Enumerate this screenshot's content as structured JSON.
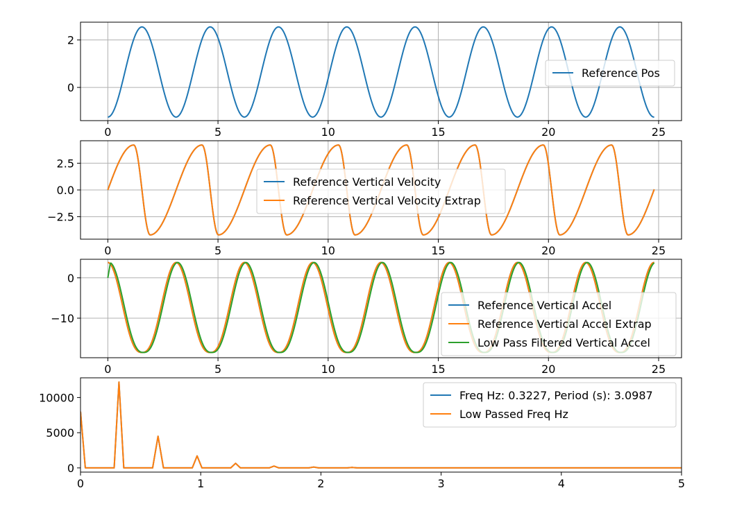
{
  "figure": {
    "background": "#ffffff"
  },
  "chart_data": [
    {
      "type": "line",
      "title": "",
      "xlabel": "",
      "ylabel": "",
      "grid": true,
      "xlim": [
        -1.24,
        26.04
      ],
      "ylim": [
        -1.4,
        2.75
      ],
      "xticks": [
        0,
        5,
        10,
        15,
        20,
        25
      ],
      "xtick_labels": [
        "0",
        "5",
        "10",
        "15",
        "20",
        "25"
      ],
      "yticks": [
        0,
        2
      ],
      "ytick_labels": [
        "0",
        "2"
      ],
      "legend": "right",
      "series": [
        {
          "name": "Reference Pos",
          "color": "#1f77b4",
          "kind": "pos",
          "amplitude": 1.9,
          "offset": 0.65,
          "phase": -1.5708,
          "period_s": 3.0987,
          "x_range": [
            0,
            24.8
          ]
        }
      ]
    },
    {
      "type": "line",
      "title": "",
      "xlabel": "",
      "ylabel": "",
      "grid": true,
      "xlim": [
        -1.24,
        26.04
      ],
      "ylim": [
        -4.6,
        4.6
      ],
      "xticks": [
        0,
        5,
        10,
        15,
        20,
        25
      ],
      "xtick_labels": [
        "0",
        "5",
        "10",
        "15",
        "20",
        "25"
      ],
      "yticks": [
        -2.5,
        0,
        2.5
      ],
      "ytick_labels": [
        "−2.5",
        "0.0",
        "2.5"
      ],
      "legend": "upper center",
      "series": [
        {
          "name": "Reference Vertical Velocity",
          "color": "#1f77b4",
          "kind": "vel",
          "amplitude": 4.2,
          "period_s": 3.0987,
          "x_range": [
            0,
            24.8
          ]
        },
        {
          "name": "Reference Vertical Velocity Extrap",
          "color": "#ff7f0e",
          "kind": "vel",
          "amplitude": 4.2,
          "period_s": 3.0987,
          "x_range": [
            0,
            24.8
          ]
        }
      ]
    },
    {
      "type": "line",
      "title": "",
      "xlabel": "",
      "ylabel": "",
      "grid": true,
      "xlim": [
        -1.24,
        26.04
      ],
      "ylim": [
        -19.8,
        4.6
      ],
      "xticks": [
        0,
        5,
        10,
        15,
        20,
        25
      ],
      "xtick_labels": [
        "0",
        "5",
        "10",
        "15",
        "20",
        "25"
      ],
      "yticks": [
        -10,
        0
      ],
      "ytick_labels": [
        "−10",
        "0"
      ],
      "legend": "lower right",
      "series": [
        {
          "name": "Reference Vertical Accel",
          "color": "#1f77b4",
          "kind": "acc",
          "max": 3.8,
          "min": -18.5,
          "period_s": 3.0987,
          "lag_s": 0,
          "x_range": [
            0,
            24.8
          ]
        },
        {
          "name": "Reference Vertical Accel Extrap",
          "color": "#ff7f0e",
          "kind": "acc",
          "max": 3.8,
          "min": -18.5,
          "period_s": 3.0987,
          "lag_s": 0,
          "x_range": [
            0,
            24.8
          ]
        },
        {
          "name": "Low Pass Filtered Vertical Accel",
          "color": "#2ca02c",
          "kind": "acc",
          "max": 3.8,
          "min": -18.5,
          "period_s": 3.0987,
          "lag_s": 0.07,
          "start": 0,
          "x_range": [
            0,
            24.8
          ]
        }
      ]
    },
    {
      "type": "line",
      "title": "",
      "xlabel": "",
      "ylabel": "",
      "grid": false,
      "xlim": [
        0,
        5
      ],
      "ylim": [
        -600,
        12800
      ],
      "xticks": [
        0,
        1,
        2,
        3,
        4,
        5
      ],
      "xtick_labels": [
        "0",
        "1",
        "2",
        "3",
        "4",
        "5"
      ],
      "yticks": [
        0,
        5000,
        10000
      ],
      "ytick_labels": [
        "0",
        "5000",
        "10000"
      ],
      "legend": "upper right",
      "series": [
        {
          "name": "Freq Hz: 0.3227, Period (s): 3.0987",
          "color": "#1f77b4",
          "x": [
            0,
            0.04,
            0.28,
            0.32,
            0.36,
            0.6,
            0.645,
            0.69,
            0.93,
            0.97,
            1.01,
            1.25,
            1.29,
            1.33,
            1.57,
            1.61,
            1.65,
            1.9,
            1.94,
            1.98,
            2.22,
            2.26,
            2.3,
            5
          ],
          "y": [
            8000,
            0,
            0,
            12200,
            0,
            0,
            4500,
            0,
            0,
            1700,
            0,
            0,
            650,
            0,
            0,
            250,
            0,
            0,
            120,
            0,
            0,
            60,
            0,
            0
          ]
        },
        {
          "name": "Low Passed Freq Hz",
          "color": "#ff7f0e",
          "x": [
            0,
            0.04,
            0.28,
            0.32,
            0.36,
            0.6,
            0.645,
            0.69,
            0.93,
            0.97,
            1.01,
            1.25,
            1.29,
            1.33,
            1.57,
            1.61,
            1.65,
            1.9,
            1.94,
            1.98,
            2.22,
            2.26,
            2.3,
            5
          ],
          "y": [
            8000,
            0,
            0,
            12200,
            0,
            0,
            4500,
            0,
            0,
            1700,
            0,
            0,
            650,
            0,
            0,
            250,
            0,
            0,
            120,
            0,
            0,
            60,
            0,
            0
          ]
        }
      ]
    }
  ]
}
